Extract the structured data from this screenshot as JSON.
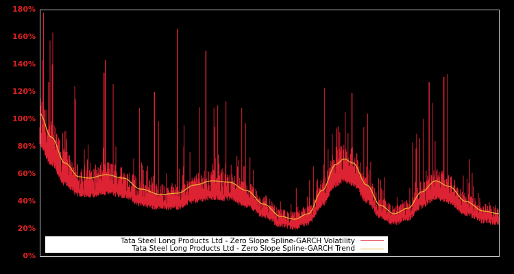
{
  "chart_data": {
    "type": "line",
    "title": "",
    "xlabel": "",
    "ylabel": "",
    "ylim": [
      0,
      180
    ],
    "y_ticks": [
      "0%",
      "20%",
      "40%",
      "60%",
      "80%",
      "100%",
      "120%",
      "140%",
      "160%",
      "180%"
    ],
    "x_ticks": [],
    "grid": false,
    "legend_position": "lower-left inside",
    "series": [
      {
        "name": "Tata Steel Long Products Ltd - Zero Slope Spline-GARCH Volatility",
        "color": "#dd2233",
        "description": "Noisy daily conditional volatility; baseline ~15-20 points below trend with frequent spikes",
        "notable_spikes_pct": [
          {
            "x_frac": 0.02,
            "value": 127
          },
          {
            "x_frac": 0.027,
            "value": 140
          },
          {
            "x_frac": 0.14,
            "value": 134
          },
          {
            "x_frac": 0.143,
            "value": 143
          },
          {
            "x_frac": 0.25,
            "value": 120
          },
          {
            "x_frac": 0.3,
            "value": 166
          },
          {
            "x_frac": 0.362,
            "value": 150
          },
          {
            "x_frac": 0.44,
            "value": 108
          },
          {
            "x_frac": 0.62,
            "value": 123
          },
          {
            "x_frac": 0.68,
            "value": 119
          },
          {
            "x_frac": 0.848,
            "value": 127
          },
          {
            "x_frac": 0.88,
            "value": 131
          },
          {
            "x_frac": 0.888,
            "value": 133
          }
        ]
      },
      {
        "name": "Tata Steel Long Products Ltd - Zero Slope Spline-GARCH Trend",
        "color": "#e8b030",
        "description": "Smooth spline trend",
        "points_pct": [
          [
            0.0,
            104
          ],
          [
            0.025,
            87
          ],
          [
            0.055,
            68
          ],
          [
            0.085,
            58
          ],
          [
            0.107,
            57
          ],
          [
            0.145,
            59.5
          ],
          [
            0.182,
            57
          ],
          [
            0.22,
            49
          ],
          [
            0.263,
            45
          ],
          [
            0.3,
            46
          ],
          [
            0.338,
            52
          ],
          [
            0.375,
            55
          ],
          [
            0.413,
            54
          ],
          [
            0.45,
            48
          ],
          [
            0.488,
            38
          ],
          [
            0.525,
            29
          ],
          [
            0.555,
            27
          ],
          [
            0.585,
            31
          ],
          [
            0.615,
            48
          ],
          [
            0.645,
            67
          ],
          [
            0.663,
            71
          ],
          [
            0.682,
            68
          ],
          [
            0.712,
            52
          ],
          [
            0.742,
            37
          ],
          [
            0.772,
            31
          ],
          [
            0.802,
            35
          ],
          [
            0.832,
            47
          ],
          [
            0.862,
            55
          ],
          [
            0.891,
            51
          ],
          [
            0.928,
            40
          ],
          [
            0.966,
            33
          ],
          [
            1.0,
            31
          ]
        ]
      }
    ]
  },
  "legend": {
    "items": [
      {
        "label": "Tata Steel Long Products Ltd - Zero Slope Spline-GARCH Volatility",
        "color": "#dd2233"
      },
      {
        "label": "Tata Steel Long Products Ltd - Zero Slope Spline-GARCH Trend",
        "color": "#e8b030"
      }
    ]
  },
  "style": {
    "background": "#000000",
    "axis_color": "#c8c8c8",
    "tick_label_color": "#dd2222"
  }
}
